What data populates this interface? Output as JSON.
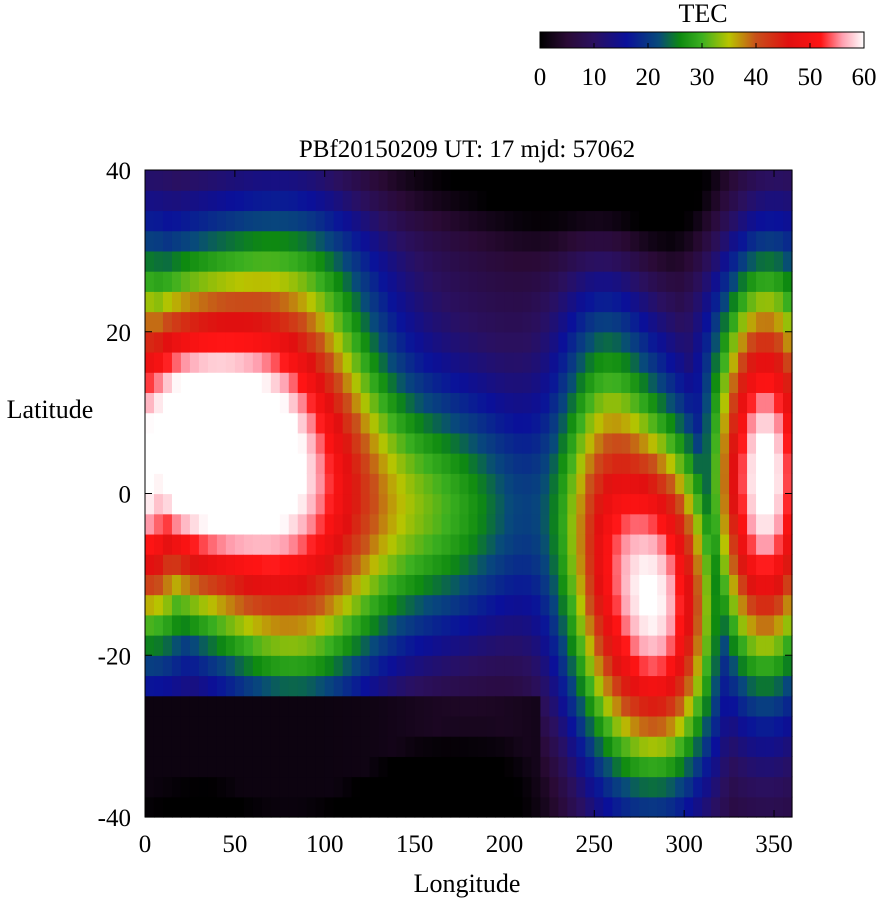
{
  "chart_data": {
    "type": "heatmap",
    "title": "PBf20150209  UT: 17  mjd: 57062",
    "xlabel": "Longitude",
    "ylabel": "Latitude",
    "xlim": [
      0,
      360
    ],
    "ylim": [
      -40,
      40
    ],
    "x_ticks": [
      "0",
      "50",
      "100",
      "150",
      "200",
      "250",
      "300",
      "350"
    ],
    "y_ticks": [
      "40",
      "20",
      "0",
      "-20",
      "-40"
    ],
    "grid": false,
    "colorbar": {
      "label": "TEC",
      "range": [
        0,
        60
      ],
      "ticks": [
        "0",
        "10",
        "20",
        "30",
        "40",
        "50",
        "60"
      ],
      "colormap_stops": [
        {
          "value": 0,
          "color": "#000000"
        },
        {
          "value": 5,
          "color": "#2a0a35"
        },
        {
          "value": 10,
          "color": "#2a1060"
        },
        {
          "value": 16,
          "color": "#0a109a"
        },
        {
          "value": 22,
          "color": "#084a7a"
        },
        {
          "value": 26,
          "color": "#0e8a10"
        },
        {
          "value": 30,
          "color": "#3cb020"
        },
        {
          "value": 35,
          "color": "#b8c400"
        },
        {
          "value": 40,
          "color": "#c8501a"
        },
        {
          "value": 46,
          "color": "#e01010"
        },
        {
          "value": 52,
          "color": "#ff1414"
        },
        {
          "value": 56,
          "color": "#ffa0b0"
        },
        {
          "value": 60,
          "color": "#ffffff"
        }
      ]
    },
    "grid_resolution": {
      "lon_step": 5,
      "lat_step": 2.5
    },
    "features_description_values": {
      "background_tec": 4,
      "night_low_tec": 1,
      "anomaly_crest_peak_tec": 60,
      "east_anomaly_peak_tec": 60
    }
  }
}
